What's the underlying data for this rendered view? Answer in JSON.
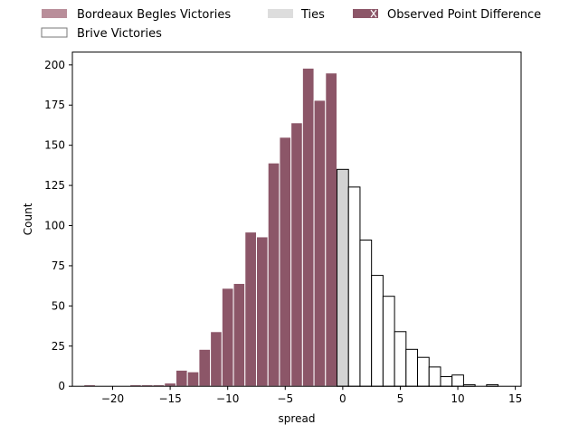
{
  "chart_data": {
    "type": "bar",
    "title": "",
    "xlabel": "spread",
    "ylabel": "Count",
    "xlim": [
      -23.5,
      15.5
    ],
    "ylim": [
      0,
      208
    ],
    "xticks": [
      -20,
      -15,
      -10,
      -5,
      0,
      5,
      10,
      15
    ],
    "yticks": [
      0,
      25,
      50,
      75,
      100,
      125,
      150,
      175,
      200
    ],
    "grid": false,
    "legend": {
      "placement": "top, above plot",
      "columns": 3,
      "entries": [
        {
          "label": "Bordeaux Begles Victories",
          "series": "bordeaux"
        },
        {
          "label": "Brive Victories",
          "series": "brive"
        },
        {
          "label": "Ties",
          "series": "ties"
        },
        {
          "label": "Observed Point Difference",
          "series": "observed"
        }
      ]
    },
    "colors": {
      "bordeaux": "#8c5668",
      "bordeaux_legend": "#b98e9a",
      "ties": "#d3d3d3",
      "brive": "#ffffff",
      "edge": "#000000",
      "bar_edge_light": "#ffffff"
    },
    "bin_width": 1,
    "series": [
      {
        "name": "Bordeaux Begles Victories",
        "bins": [
          {
            "x": -22,
            "count": 1
          },
          {
            "x": -21,
            "count": 0
          },
          {
            "x": -20,
            "count": 0
          },
          {
            "x": -19,
            "count": 0
          },
          {
            "x": -18,
            "count": 1
          },
          {
            "x": -17,
            "count": 1
          },
          {
            "x": -16,
            "count": 1
          },
          {
            "x": -15,
            "count": 2
          },
          {
            "x": -14,
            "count": 10
          },
          {
            "x": -13,
            "count": 9
          },
          {
            "x": -12,
            "count": 23
          },
          {
            "x": -11,
            "count": 34
          },
          {
            "x": -10,
            "count": 61
          },
          {
            "x": -9,
            "count": 64
          },
          {
            "x": -8,
            "count": 96
          },
          {
            "x": -7,
            "count": 93
          },
          {
            "x": -6,
            "count": 139
          },
          {
            "x": -5,
            "count": 155
          },
          {
            "x": -4,
            "count": 164
          },
          {
            "x": -3,
            "count": 198
          },
          {
            "x": -2,
            "count": 178
          },
          {
            "x": -1,
            "count": 195
          }
        ]
      },
      {
        "name": "Ties",
        "bins": [
          {
            "x": 0,
            "count": 135
          }
        ]
      },
      {
        "name": "Brive Victories",
        "bins": [
          {
            "x": 1,
            "count": 124
          },
          {
            "x": 2,
            "count": 91
          },
          {
            "x": 3,
            "count": 69
          },
          {
            "x": 4,
            "count": 56
          },
          {
            "x": 5,
            "count": 34
          },
          {
            "x": 6,
            "count": 23
          },
          {
            "x": 7,
            "count": 18
          },
          {
            "x": 8,
            "count": 12
          },
          {
            "x": 9,
            "count": 6
          },
          {
            "x": 10,
            "count": 7
          },
          {
            "x": 11,
            "count": 1
          },
          {
            "x": 12,
            "count": 0
          },
          {
            "x": 13,
            "count": 1
          }
        ]
      }
    ]
  }
}
